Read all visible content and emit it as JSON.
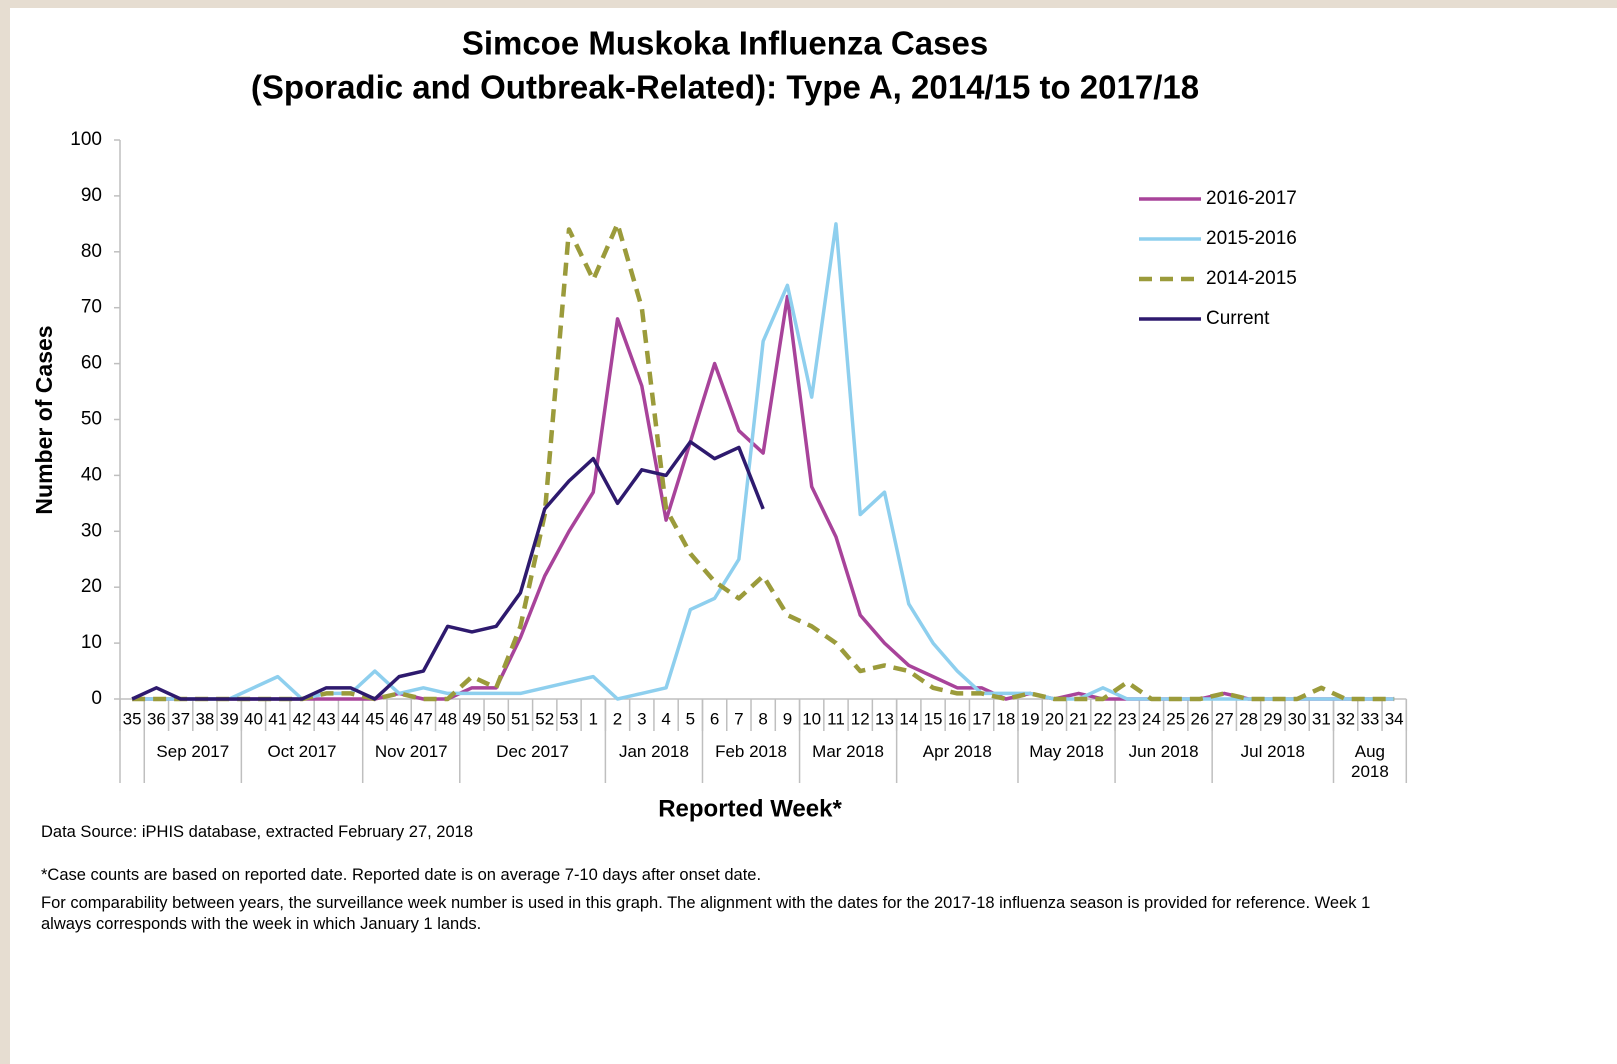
{
  "chart_data": {
    "type": "line",
    "title_lines": [
      "Simcoe Muskoka Influenza Cases",
      "(Sporadic and Outbreak-Related): Type A, 2014/15 to 2017/18"
    ],
    "ylabel": "Number of Cases",
    "xlabel": "Reported Week*",
    "categories": [
      "35",
      "36",
      "37",
      "38",
      "39",
      "40",
      "41",
      "42",
      "43",
      "44",
      "45",
      "46",
      "47",
      "48",
      "49",
      "50",
      "51",
      "52",
      "53",
      "1",
      "2",
      "3",
      "4",
      "5",
      "6",
      "7",
      "8",
      "9",
      "10",
      "11",
      "12",
      "13",
      "14",
      "15",
      "16",
      "17",
      "18",
      "19",
      "20",
      "21",
      "22",
      "23",
      "24",
      "25",
      "26",
      "27",
      "28",
      "29",
      "30",
      "31",
      "32",
      "33",
      "34"
    ],
    "month_groups": [
      {
        "label": null,
        "span": 1
      },
      {
        "label": "Sep 2017",
        "span": 4
      },
      {
        "label": "Oct 2017",
        "span": 5
      },
      {
        "label": "Nov 2017",
        "span": 4
      },
      {
        "label": "Dec 2017",
        "span": 6
      },
      {
        "label": "Jan 2018",
        "span": 4
      },
      {
        "label": "Feb 2018",
        "span": 4
      },
      {
        "label": "Mar 2018",
        "span": 4
      },
      {
        "label": "Apr 2018",
        "span": 5
      },
      {
        "label": "May 2018",
        "span": 4
      },
      {
        "label": "Jun 2018",
        "span": 4
      },
      {
        "label": "Jul 2018",
        "span": 5
      },
      {
        "label": "Aug 2018",
        "span": 3
      }
    ],
    "series": [
      {
        "name": "2016-2017",
        "color": "#a8439a",
        "dashed": false,
        "values": [
          0,
          0,
          0,
          0,
          0,
          0,
          0,
          0,
          0,
          0,
          0,
          1,
          0,
          0,
          2,
          2,
          11,
          22,
          30,
          37,
          68,
          56,
          32,
          46,
          60,
          48,
          44,
          72,
          38,
          29,
          15,
          10,
          6,
          4,
          2,
          2,
          0,
          1,
          0,
          1,
          0,
          0,
          0,
          0,
          0,
          1,
          0,
          0,
          0,
          0,
          0,
          0,
          0
        ]
      },
      {
        "name": "2015-2016",
        "color": "#8ecfee",
        "dashed": false,
        "values": [
          0,
          0,
          0,
          0,
          0,
          2,
          4,
          0,
          1,
          1,
          5,
          1,
          2,
          1,
          1,
          1,
          1,
          2,
          3,
          4,
          0,
          1,
          2,
          16,
          18,
          25,
          64,
          74,
          54,
          85,
          33,
          37,
          17,
          10,
          5,
          1,
          1,
          1,
          0,
          0,
          2,
          0,
          0,
          0,
          0,
          0,
          0,
          0,
          0,
          0,
          0,
          0,
          0
        ]
      },
      {
        "name": "2014-2015",
        "color": "#9b9b3b",
        "dashed": true,
        "values": [
          0,
          0,
          0,
          0,
          0,
          0,
          0,
          0,
          1,
          1,
          0,
          1,
          0,
          0,
          4,
          2,
          13,
          33,
          84,
          75,
          85,
          70,
          34,
          26,
          21,
          18,
          22,
          15,
          13,
          10,
          5,
          6,
          5,
          2,
          1,
          1,
          0,
          1,
          0,
          0,
          0,
          3,
          0,
          0,
          0,
          1,
          0,
          0,
          0,
          2,
          0,
          0,
          0
        ]
      },
      {
        "name": "Current",
        "color": "#2e1a6e",
        "dashed": false,
        "values": [
          0,
          2,
          0,
          0,
          0,
          0,
          0,
          0,
          2,
          2,
          0,
          4,
          5,
          13,
          12,
          13,
          19,
          34,
          39,
          43,
          35,
          41,
          40,
          46,
          43,
          45,
          34,
          null,
          null,
          null,
          null,
          null,
          null,
          null,
          null,
          null,
          null,
          null,
          null,
          null,
          null,
          null,
          null,
          null,
          null,
          null,
          null,
          null,
          null,
          null,
          null,
          null,
          null
        ]
      }
    ],
    "ylim": [
      0,
      100
    ],
    "yticks": [
      0,
      10,
      20,
      30,
      40,
      50,
      60,
      70,
      80,
      90,
      100
    ],
    "legend": "upper right",
    "notes": [
      "Data Source: iPHIS database, extracted February 27, 2018",
      "*Case counts are based on reported date. Reported date is on average 7-10 days after onset date.",
      "For comparability between years, the surveillance week number is used in this graph. The alignment with the dates for the 2017-18 influenza season is provided for reference. Week 1 always corresponds with the week in which January 1 lands."
    ]
  }
}
